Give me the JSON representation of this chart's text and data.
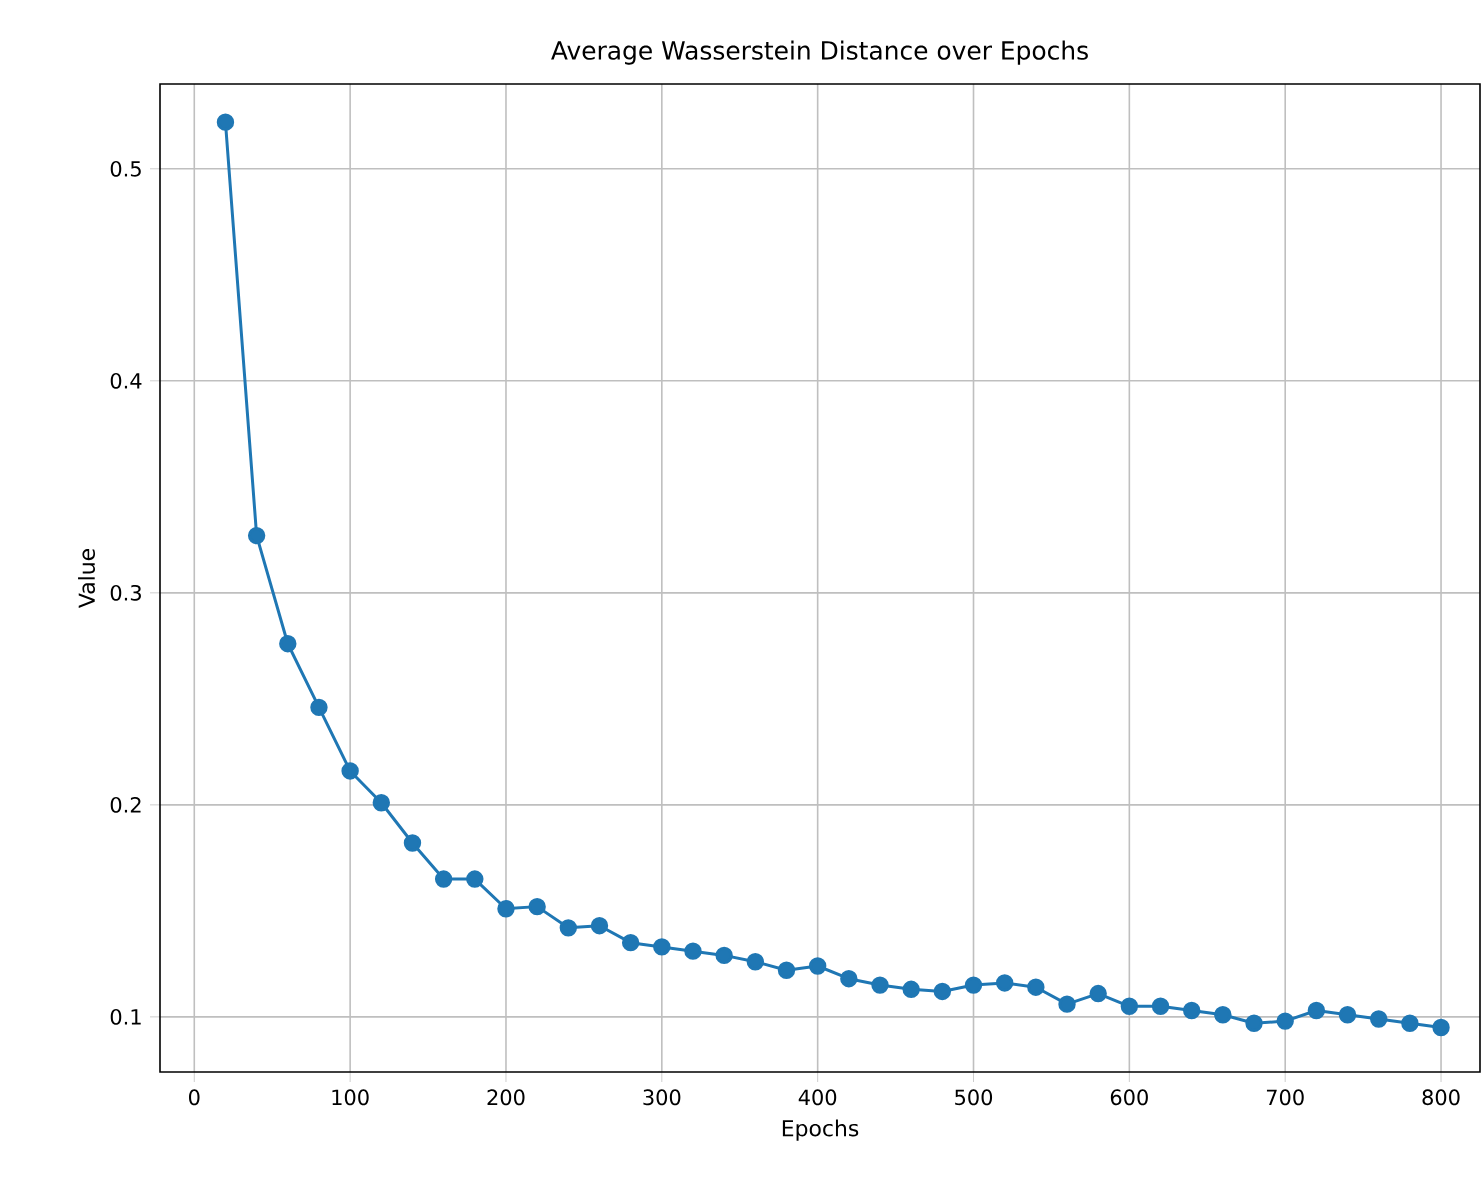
{
  "chart_data": {
    "type": "line",
    "title": "Average Wasserstein Distance over Epochs",
    "xlabel": "Epochs",
    "ylabel": "Value",
    "x": [
      20,
      40,
      60,
      80,
      100,
      120,
      140,
      160,
      180,
      200,
      220,
      240,
      260,
      280,
      300,
      320,
      340,
      360,
      380,
      400,
      420,
      440,
      460,
      480,
      500,
      520,
      540,
      560,
      580,
      600,
      620,
      640,
      660,
      680,
      700,
      720,
      740,
      760,
      780,
      800
    ],
    "series": [
      {
        "color": "#1f77b4",
        "values": [
          0.522,
          0.327,
          0.276,
          0.246,
          0.216,
          0.201,
          0.182,
          0.165,
          0.165,
          0.151,
          0.152,
          0.142,
          0.143,
          0.135,
          0.133,
          0.131,
          0.129,
          0.126,
          0.122,
          0.124,
          0.118,
          0.115,
          0.113,
          0.112,
          0.115,
          0.116,
          0.114,
          0.106,
          0.111,
          0.105,
          0.105,
          0.103,
          0.101,
          0.097,
          0.098,
          0.103,
          0.101,
          0.099,
          0.097,
          0.095
        ]
      }
    ],
    "xlim": [
      -22,
      825
    ],
    "ylim": [
      0.074,
      0.54
    ],
    "xticks": [
      0,
      100,
      200,
      300,
      400,
      500,
      600,
      700,
      800
    ],
    "yticks": [
      0.1,
      0.2,
      0.3,
      0.4,
      0.5
    ],
    "grid": true,
    "marker": "circle",
    "line_style": "solid"
  }
}
